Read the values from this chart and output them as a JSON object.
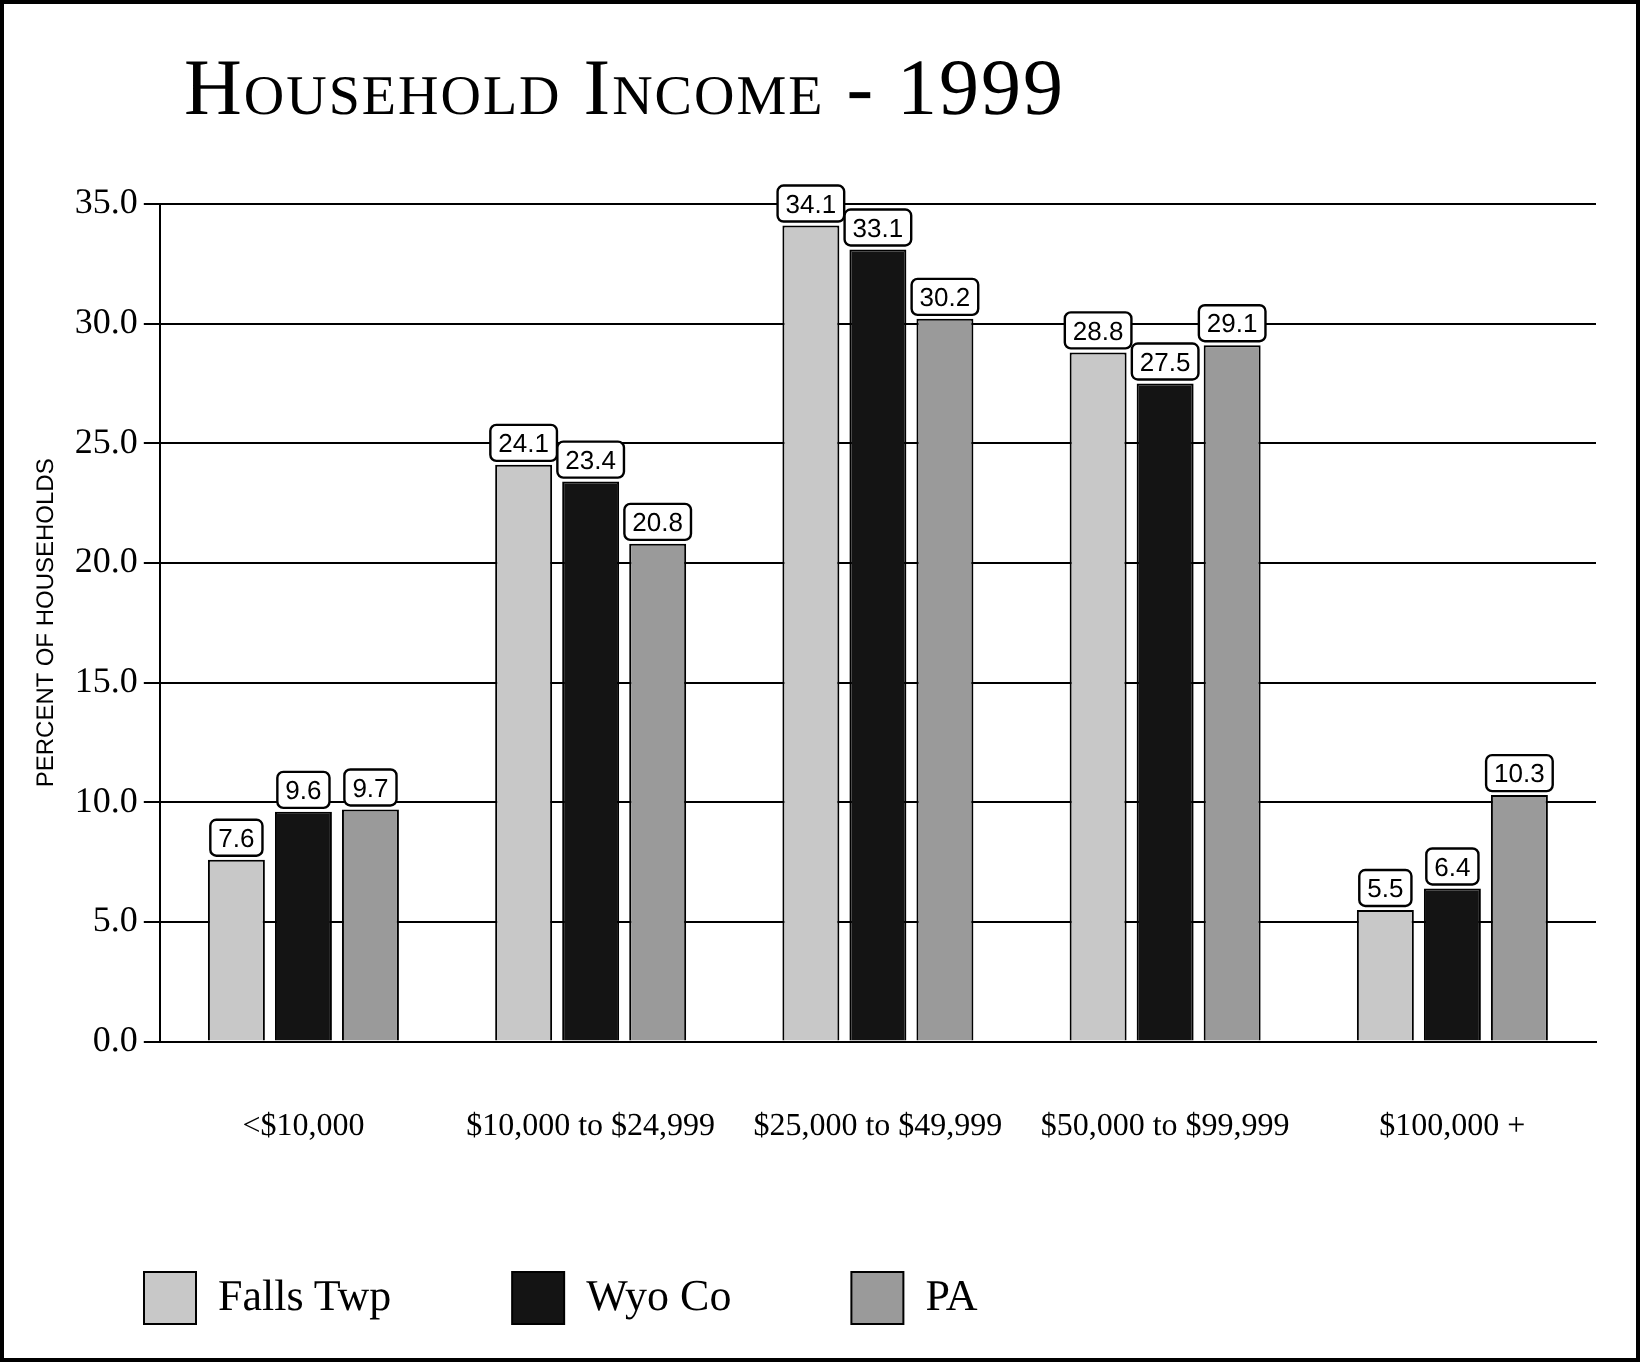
{
  "chart_data": {
    "type": "bar",
    "title": "Household Income - 1999",
    "ylabel": "PERCENT OF HOUSEHOLDS",
    "categories": [
      "<$10,000",
      "$10,000 to $24,999",
      "$25,000 to $49,999",
      "$50,000 to $99,999",
      "$100,000 +"
    ],
    "series": [
      {
        "name": "Falls Twp",
        "color": "#c8c8c8",
        "values": [
          7.6,
          24.1,
          34.1,
          28.8,
          5.5
        ]
      },
      {
        "name": "Wyo Co",
        "color": "#141414",
        "values": [
          9.6,
          23.4,
          33.1,
          27.5,
          6.4
        ]
      },
      {
        "name": "PA",
        "color": "#9a9a9a",
        "values": [
          9.7,
          20.8,
          30.2,
          29.1,
          10.3
        ]
      }
    ],
    "ylim": [
      0,
      35
    ],
    "yticks": [
      {
        "value": 0,
        "label": "0.0"
      },
      {
        "value": 5,
        "label": "5.0"
      },
      {
        "value": 10,
        "label": "10.0"
      },
      {
        "value": 15,
        "label": "15.0"
      },
      {
        "value": 20,
        "label": "20.0"
      },
      {
        "value": 25,
        "label": "25.0"
      },
      {
        "value": 30,
        "label": "30.0"
      },
      {
        "value": 35,
        "label": "35.0"
      }
    ],
    "grid": "y",
    "legend": "bottom",
    "data_labels": true
  }
}
